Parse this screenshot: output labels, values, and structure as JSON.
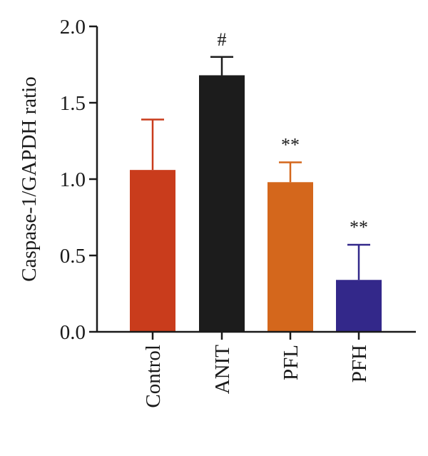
{
  "chart_data": {
    "type": "bar",
    "title": "",
    "xlabel": "",
    "ylabel": "Caspase-1/GAPDH ratio",
    "ylim": [
      0,
      2.0
    ],
    "yticks": [
      0.0,
      0.5,
      1.0,
      1.5,
      2.0
    ],
    "ytick_labels": [
      "0.0",
      "0.5",
      "1.0",
      "1.5",
      "2.0"
    ],
    "categories": [
      "Control",
      "ANIT",
      "PFL",
      "PFH"
    ],
    "values": [
      1.06,
      1.68,
      0.98,
      0.34
    ],
    "errors": [
      0.33,
      0.12,
      0.13,
      0.23
    ],
    "annotations": [
      "",
      "#",
      "**",
      "**"
    ],
    "colors": [
      "#c93c1c",
      "#1c1c1c",
      "#d4671c",
      "#33288a"
    ],
    "error_bar_colors": [
      "#c93c1c",
      "#1c1c1c",
      "#d4671c",
      "#33288a"
    ],
    "grid": false,
    "legend": "none"
  }
}
